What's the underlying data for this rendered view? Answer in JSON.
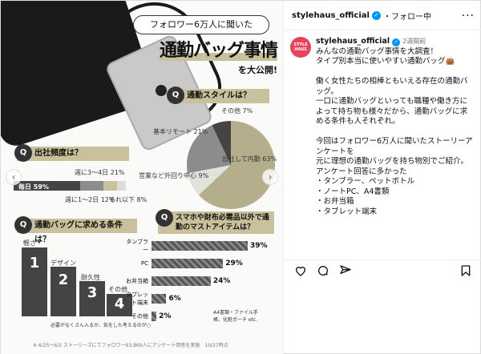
{
  "infographic": {
    "title_pill": "フォロワー6万人に聞いた",
    "title_main": "通勤バッグ事情",
    "title_sub": "を大公開!",
    "q1": "通勤スタイルは？",
    "q2": "出社頻度は？",
    "q3": "通勤バッグに求める条件は？",
    "q4": "スマホや財布必需品以外で通勤のマストアイテムは？",
    "pie_labels": [
      {
        "text": "その他 7%"
      },
      {
        "text": "基本リモート 21%"
      },
      {
        "text": "出社して内勤 63%"
      },
      {
        "text": "営業など外回り中心 9%"
      }
    ],
    "freq_labels": {
      "daily": "毎日 59%",
      "w34": "週に3〜4日 21%",
      "w12": "週に1〜2日 12%",
      "less": "それ以下 8%"
    },
    "ranks": [
      {
        "rank": "1",
        "label": "軽さ・機能性"
      },
      {
        "rank": "2",
        "label": "デザイン"
      },
      {
        "rank": "3",
        "label": "耐久性"
      },
      {
        "rank": "4",
        "label": "その他"
      }
    ],
    "rank_note": "必要がなくさん入るか、気をした考えるのが○",
    "must_items": [
      {
        "label": "タンブラー",
        "pct": "39%",
        "value": 39
      },
      {
        "label": "PC",
        "pct": "29%",
        "value": 29
      },
      {
        "label": "お弁当箱",
        "pct": "24%",
        "value": 24
      },
      {
        "label": "タブレット端末",
        "pct": "6%",
        "value": 6
      },
      {
        "label": "その他",
        "pct": "2%",
        "value": 2
      }
    ],
    "other_note": "A4書類・ファイル手帳、化粧ポーチ etc.",
    "footnote": "※ 6/25〜6/2 ストーリーズにてフォロワー63,869人にアンケート回答を実施　10/27時点",
    "colors": {
      "accent": "#c8c19b",
      "dark": "#444444"
    }
  },
  "header": {
    "username": "stylehaus_official",
    "follow": "・フォロー中",
    "more": "···"
  },
  "post": {
    "avatar_text": "STYLE HAUS",
    "username": "stylehaus_official",
    "time": "2週間前",
    "caption": "みんなの通勤バッグ事情を大調査！\nタイプ別本当に使いやすい通勤バッグ👜\n\n働く女性たちの相棒ともいえる存在の通勤バッグ。\n一口に通勤バッグといっても職種や働き方によって持ち物も様々だから、通勤バッグに求める条件も人それぞれ。\n\n今回はフォロワー6万人に聞いたストーリーアンケートを\n元に理想の通勤バッグを持ち物別でご紹介。\nアンケート回答に多かった\n・タンブラー、ペットボトル\n・ノートPC、A4書類\n・お弁当箱\n・タブレット端末"
  },
  "icons": [
    "heart-icon",
    "comment-icon",
    "share-icon",
    "bookmark-icon"
  ]
}
